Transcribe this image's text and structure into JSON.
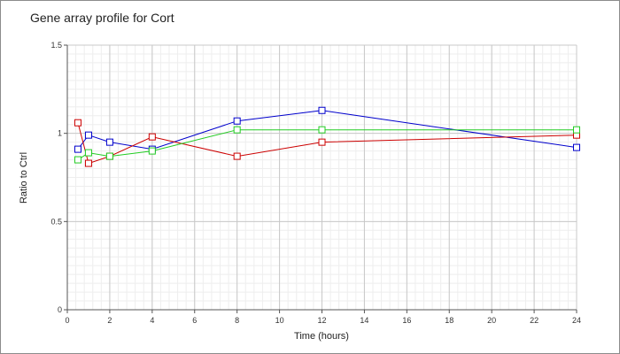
{
  "chart_data": {
    "type": "line",
    "title": "Gene array profile for Cort",
    "xlabel": "Time (hours)",
    "ylabel": "Ratio to Ctrl",
    "xlim": [
      0,
      24
    ],
    "ylim": [
      0,
      1.5
    ],
    "x_ticks": [
      0,
      2,
      4,
      6,
      8,
      10,
      12,
      14,
      16,
      18,
      20,
      22,
      24
    ],
    "y_ticks": [
      0,
      0.5,
      1,
      1.5
    ],
    "x_tick_labels": [
      "0",
      "2",
      "4",
      "6",
      "8",
      "10",
      "12",
      "14",
      "16",
      "18",
      "20",
      "22",
      "24"
    ],
    "y_tick_labels": [
      "0",
      "0.5",
      "1",
      "1.5"
    ],
    "grid": true,
    "marker": "square",
    "series": [
      {
        "color": "#0000cc",
        "x": [
          0.5,
          1,
          2,
          4,
          8,
          12,
          24
        ],
        "y": [
          0.91,
          0.99,
          0.95,
          0.91,
          1.07,
          1.13,
          0.92
        ]
      },
      {
        "color": "#cc0000",
        "x": [
          0.5,
          1,
          2,
          4,
          8,
          12,
          24
        ],
        "y": [
          1.06,
          0.83,
          0.87,
          0.98,
          0.87,
          0.95,
          0.99
        ]
      },
      {
        "color": "#22cc22",
        "x": [
          0.5,
          1,
          2,
          4,
          8,
          12,
          24
        ],
        "y": [
          0.85,
          0.89,
          0.87,
          0.9,
          1.02,
          1.02,
          1.02
        ]
      }
    ]
  }
}
